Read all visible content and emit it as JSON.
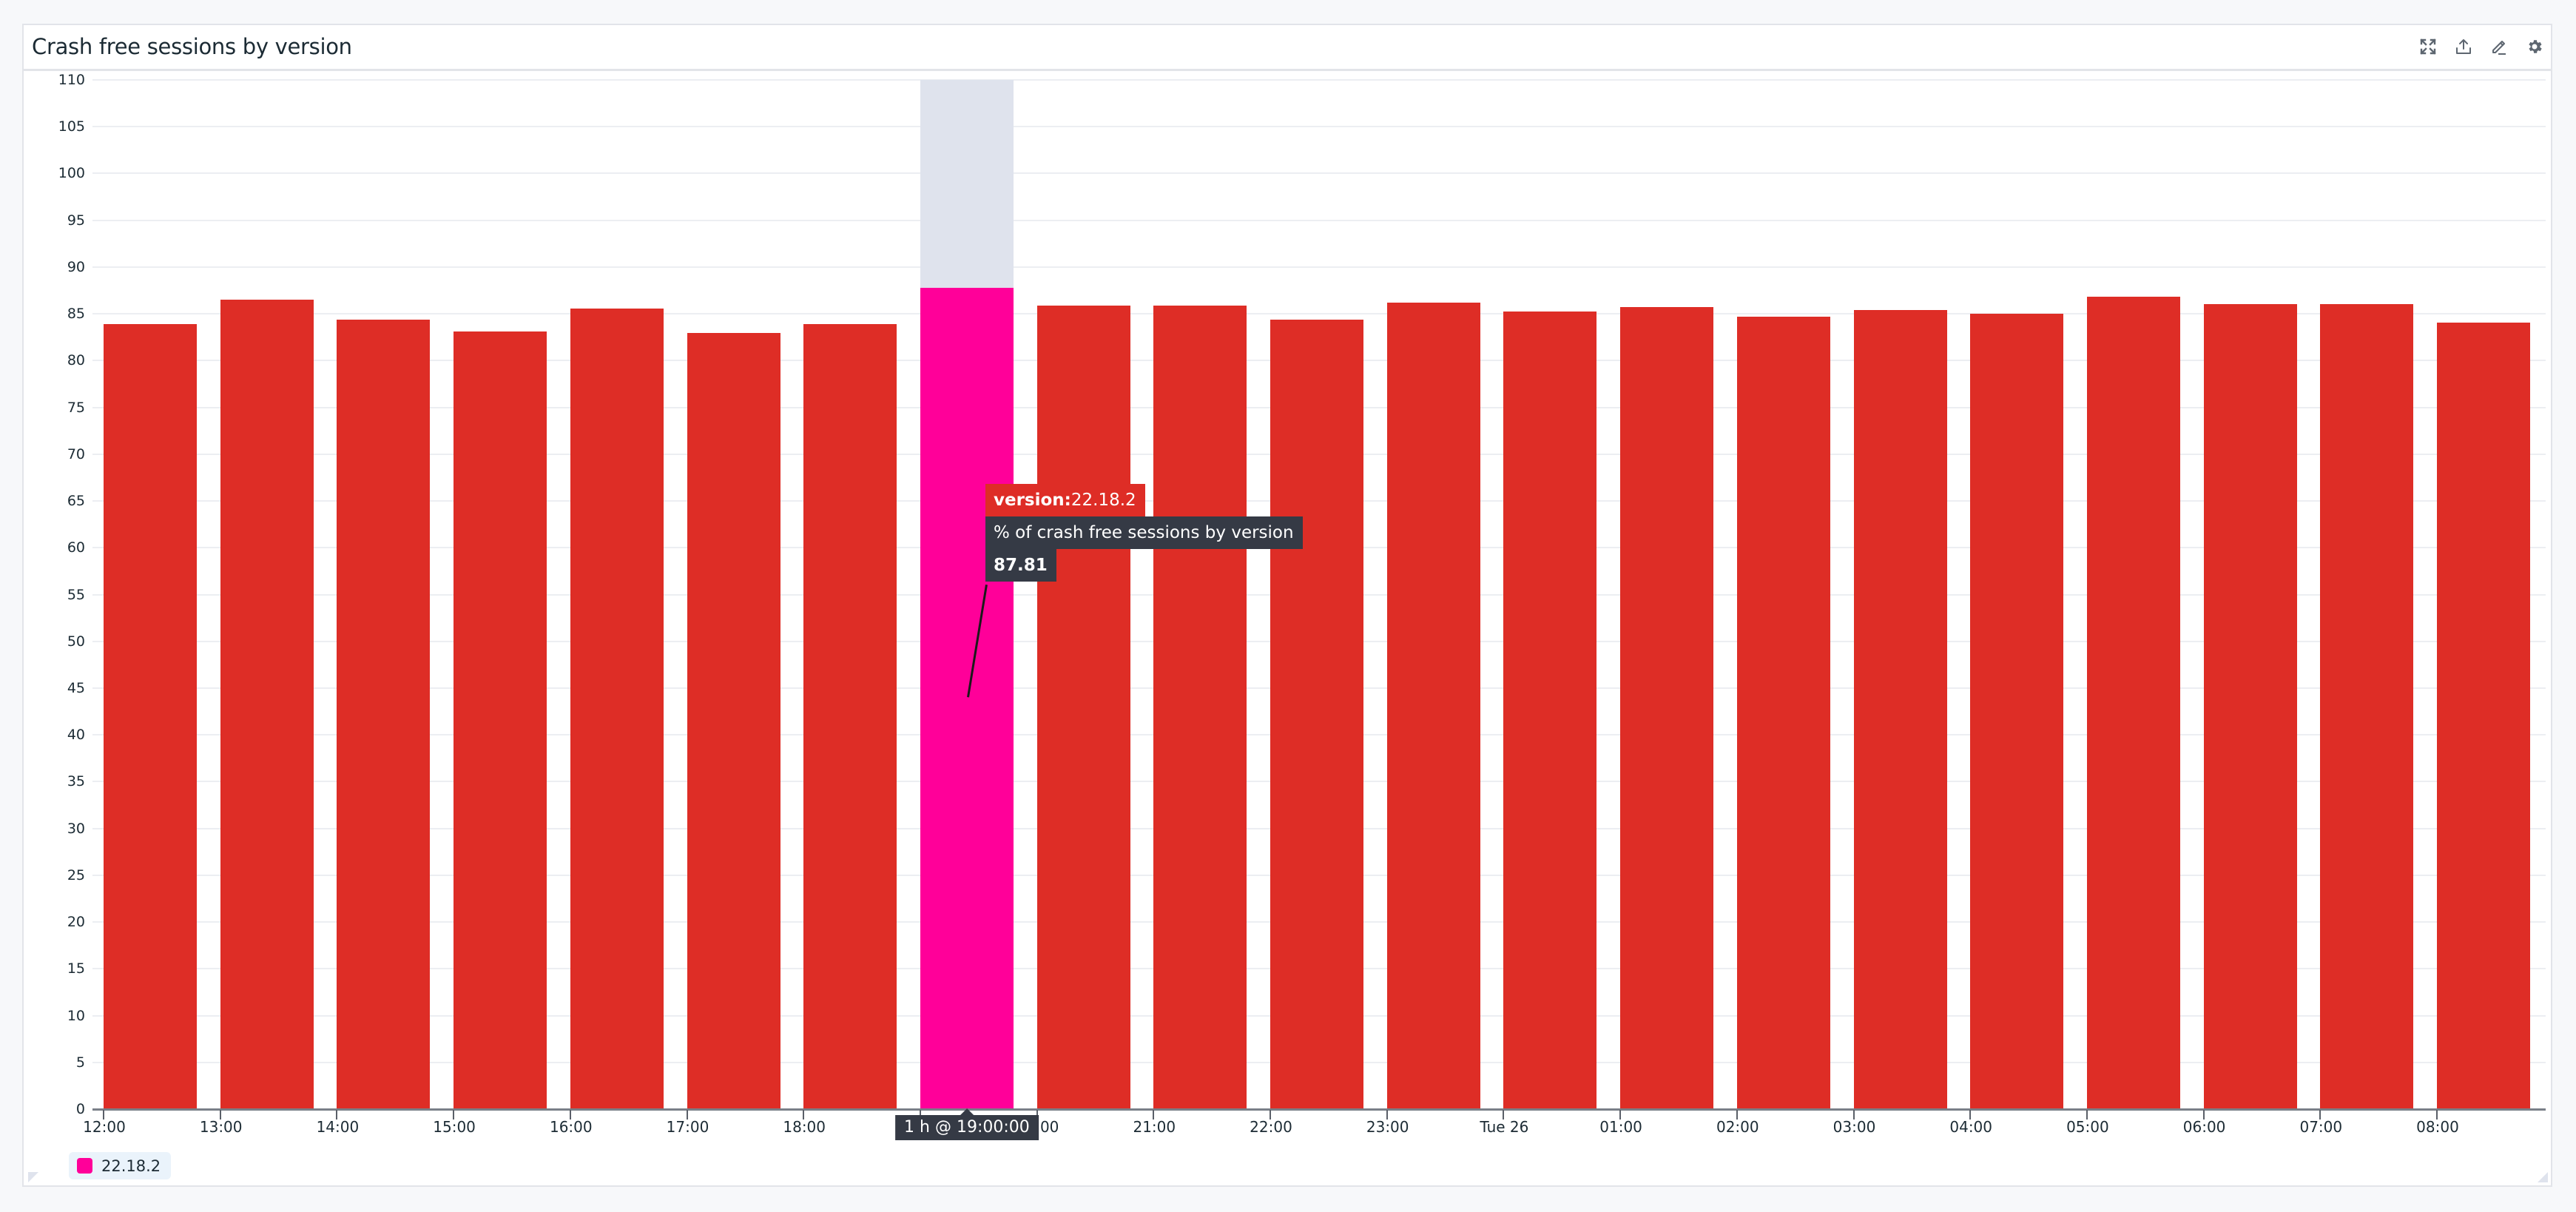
{
  "panel": {
    "title": "Crash free sessions by version",
    "icons": [
      {
        "name": "expand-icon",
        "label": "Full screen"
      },
      {
        "name": "share-icon",
        "label": "Export"
      },
      {
        "name": "pencil-icon",
        "label": "Edit"
      },
      {
        "name": "gear-icon",
        "label": "Settings"
      }
    ]
  },
  "tooltip": {
    "series_key": "version:",
    "series_value": "22.18.2",
    "metric": "% of crash free sessions by version",
    "value": "87.81",
    "x_label": "1 h @ 19:00:00"
  },
  "legend": {
    "items": [
      {
        "label": "22.18.2",
        "color": "#ff0099"
      }
    ]
  },
  "colors": {
    "bar": "#de2d26",
    "highlight": "#ff0099",
    "hover_band": "#dfe3ed",
    "tooltip_bg": "#353a45"
  },
  "chart_data": {
    "type": "bar",
    "title": "Crash free sessions by version",
    "xlabel": "",
    "ylabel": "",
    "ylim": [
      0,
      110
    ],
    "yticks": [
      0,
      5,
      10,
      15,
      20,
      25,
      30,
      35,
      40,
      45,
      50,
      55,
      60,
      65,
      70,
      75,
      80,
      85,
      90,
      95,
      100,
      105,
      110
    ],
    "grid": true,
    "legend_position": "bottom-left",
    "categories": [
      "12:00",
      "13:00",
      "14:00",
      "15:00",
      "16:00",
      "17:00",
      "18:00",
      "19:00",
      "20:00",
      "21:00",
      "22:00",
      "23:00",
      "Tue 26",
      "01:00",
      "02:00",
      "03:00",
      "04:00",
      "05:00",
      "06:00",
      "07:00",
      "08:00"
    ],
    "xtick_labels": [
      "12:00",
      "13:00",
      "14:00",
      "15:00",
      "16:00",
      "17:00",
      "18:00",
      "",
      "20:00",
      "21:00",
      "22:00",
      "23:00",
      "Tue 26",
      "01:00",
      "02:00",
      "03:00",
      "04:00",
      "05:00",
      "06:00",
      "07:00",
      "08:00"
    ],
    "series": [
      {
        "name": "22.18.2",
        "values": [
          83.94,
          86.52,
          84.41,
          83.14,
          85.53,
          82.98,
          83.94,
          87.81,
          85.85,
          85.85,
          84.41,
          86.17,
          85.21,
          85.69,
          84.73,
          85.37,
          85.05,
          86.81,
          86.01,
          86.01,
          84.1
        ]
      }
    ],
    "highlighted_index": 7,
    "annotations": [
      {
        "type": "tooltip",
        "x": "19:00",
        "text": "version:22.18.2 / % of crash free sessions by version / 87.81"
      },
      {
        "type": "x-tooltip",
        "text": "1 h @ 19:00:00"
      }
    ]
  }
}
